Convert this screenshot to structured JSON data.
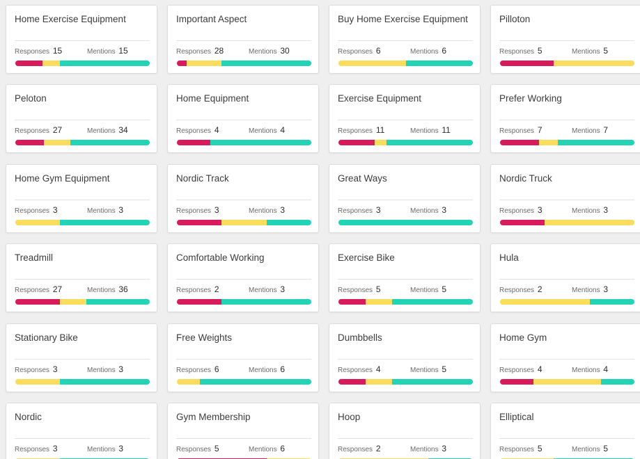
{
  "colors": {
    "negative": "#d81b5a",
    "neutral": "#fbdc5c",
    "positive": "#22d3b5"
  },
  "labels": {
    "responses": "Responses",
    "mentions": "Mentions"
  },
  "cards": [
    {
      "title": "Home Exercise Equipment",
      "responses": 15,
      "mentions": 15,
      "sentiment": [
        0.2,
        0.13,
        0.67
      ]
    },
    {
      "title": "Important Aspect",
      "responses": 28,
      "mentions": 30,
      "sentiment": [
        0.07,
        0.26,
        0.67
      ]
    },
    {
      "title": "Buy Home Exercise Equipment",
      "responses": 6,
      "mentions": 6,
      "sentiment": [
        0.0,
        0.5,
        0.5
      ]
    },
    {
      "title": "Pilloton",
      "responses": 5,
      "mentions": 5,
      "sentiment": [
        0.4,
        0.6,
        0.0
      ]
    },
    {
      "title": "Peloton",
      "responses": 27,
      "mentions": 34,
      "sentiment": [
        0.21,
        0.2,
        0.59
      ]
    },
    {
      "title": "Home Equipment",
      "responses": 4,
      "mentions": 4,
      "sentiment": [
        0.25,
        0.0,
        0.75
      ]
    },
    {
      "title": "Exercise Equipment",
      "responses": 11,
      "mentions": 11,
      "sentiment": [
        0.27,
        0.09,
        0.64
      ]
    },
    {
      "title": "Prefer Working",
      "responses": 7,
      "mentions": 7,
      "sentiment": [
        0.29,
        0.14,
        0.57
      ]
    },
    {
      "title": "Home Gym Equipment",
      "responses": 3,
      "mentions": 3,
      "sentiment": [
        0.0,
        0.33,
        0.67
      ]
    },
    {
      "title": "Nordic Track",
      "responses": 3,
      "mentions": 3,
      "sentiment": [
        0.33,
        0.34,
        0.33
      ]
    },
    {
      "title": "Great Ways",
      "responses": 3,
      "mentions": 3,
      "sentiment": [
        0.0,
        0.0,
        1.0
      ]
    },
    {
      "title": "Nordic Truck",
      "responses": 3,
      "mentions": 3,
      "sentiment": [
        0.33,
        0.67,
        0.0
      ]
    },
    {
      "title": "Treadmill",
      "responses": 27,
      "mentions": 36,
      "sentiment": [
        0.33,
        0.2,
        0.47
      ]
    },
    {
      "title": "Comfortable Working",
      "responses": 2,
      "mentions": 3,
      "sentiment": [
        0.33,
        0.0,
        0.67
      ]
    },
    {
      "title": "Exercise Bike",
      "responses": 5,
      "mentions": 5,
      "sentiment": [
        0.2,
        0.2,
        0.6
      ]
    },
    {
      "title": "Hula",
      "responses": 2,
      "mentions": 3,
      "sentiment": [
        0.0,
        0.67,
        0.33
      ]
    },
    {
      "title": "Stationary Bike",
      "responses": 3,
      "mentions": 3,
      "sentiment": [
        0.0,
        0.33,
        0.67
      ]
    },
    {
      "title": "Free Weights",
      "responses": 6,
      "mentions": 6,
      "sentiment": [
        0.0,
        0.17,
        0.83
      ]
    },
    {
      "title": "Dumbbells",
      "responses": 4,
      "mentions": 5,
      "sentiment": [
        0.2,
        0.2,
        0.6
      ]
    },
    {
      "title": "Home Gym",
      "responses": 4,
      "mentions": 4,
      "sentiment": [
        0.25,
        0.5,
        0.25
      ]
    },
    {
      "title": "Nordic",
      "responses": 3,
      "mentions": 3,
      "sentiment": [
        0.0,
        0.33,
        0.67
      ]
    },
    {
      "title": "Gym Membership",
      "responses": 5,
      "mentions": 6,
      "sentiment": [
        0.67,
        0.33,
        0.0
      ]
    },
    {
      "title": "Hoop",
      "responses": 2,
      "mentions": 3,
      "sentiment": [
        0.0,
        0.67,
        0.33
      ]
    },
    {
      "title": "Elliptical",
      "responses": 5,
      "mentions": 5,
      "sentiment": [
        0.0,
        0.4,
        0.6
      ]
    }
  ]
}
